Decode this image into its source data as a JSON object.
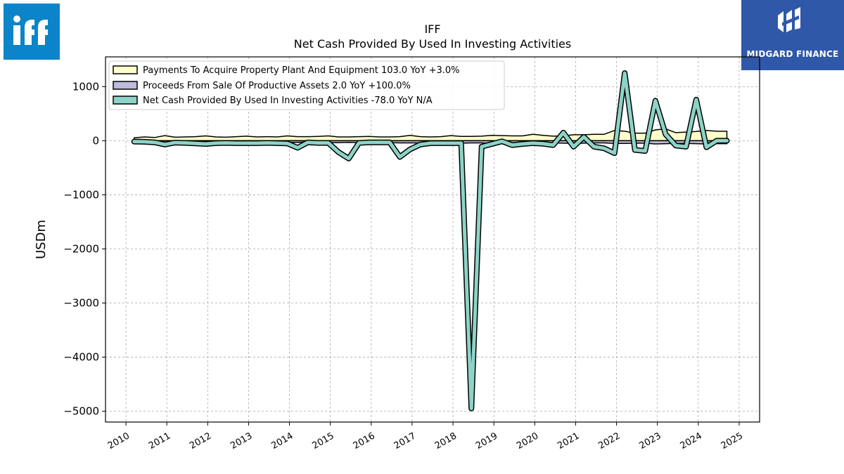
{
  "logos": {
    "left": {
      "text": "iff",
      "color": "#0b84c9"
    },
    "right": {
      "text": "MIDGARD FINANCE",
      "color": "#2f58a8"
    }
  },
  "chart_data": {
    "type": "line",
    "title": "IFF",
    "subtitle": "Net Cash Provided By Used In Investing Activities",
    "ylabel": "USDm",
    "xlabel": "",
    "ylim": [
      -5200,
      1550
    ],
    "xlim": [
      2009.5,
      2025.5
    ],
    "yticks": [
      1000,
      0,
      -1000,
      -2000,
      -3000,
      -4000,
      -5000
    ],
    "ytick_labels": [
      "1000",
      "0",
      "−1000",
      "−2000",
      "−3000",
      "−4000",
      "−5000"
    ],
    "xticks": [
      2010,
      2011,
      2012,
      2013,
      2014,
      2015,
      2016,
      2017,
      2018,
      2019,
      2020,
      2021,
      2022,
      2023,
      2024,
      2025
    ],
    "xtick_labels": [
      "2010",
      "2011",
      "2012",
      "2013",
      "2014",
      "2015",
      "2016",
      "2017",
      "2018",
      "2019",
      "2020",
      "2021",
      "2022",
      "2023",
      "2024",
      "2025"
    ],
    "grid": true,
    "legend_position": "top-left",
    "x": [
      2010.2,
      2010.45,
      2010.7,
      2010.95,
      2011.2,
      2011.45,
      2011.7,
      2011.95,
      2012.2,
      2012.45,
      2012.7,
      2012.95,
      2013.2,
      2013.45,
      2013.7,
      2013.95,
      2014.2,
      2014.45,
      2014.7,
      2014.95,
      2015.2,
      2015.45,
      2015.7,
      2015.95,
      2016.2,
      2016.45,
      2016.7,
      2016.95,
      2017.2,
      2017.45,
      2017.7,
      2017.95,
      2018.2,
      2018.45,
      2018.7,
      2018.95,
      2019.2,
      2019.45,
      2019.7,
      2019.95,
      2020.2,
      2020.45,
      2020.7,
      2020.95,
      2021.2,
      2021.45,
      2021.7,
      2021.95,
      2022.2,
      2022.45,
      2022.7,
      2022.95,
      2023.2,
      2023.45,
      2023.7,
      2023.95,
      2024.2,
      2024.45,
      2024.7
    ],
    "series": [
      {
        "name": "Payments To Acquire Property Plant And Equipment  103.0 YoY +3.0%",
        "kind": "fill",
        "color": "#ffffcc",
        "values": [
          55,
          70,
          60,
          95,
          65,
          70,
          75,
          90,
          70,
          65,
          75,
          85,
          70,
          75,
          70,
          90,
          75,
          75,
          80,
          90,
          70,
          70,
          75,
          80,
          70,
          70,
          75,
          100,
          75,
          70,
          75,
          95,
          80,
          80,
          85,
          100,
          95,
          90,
          90,
          120,
          100,
          85,
          90,
          110,
          110,
          120,
          120,
          190,
          175,
          140,
          140,
          200,
          220,
          150,
          160,
          170,
          190,
          175,
          175
        ]
      },
      {
        "name": "Proceeds From Sale Of Productive Assets  2.0 YoY +100.0%",
        "kind": "fill",
        "color": "#bebada",
        "values": [
          -20,
          -15,
          -20,
          -25,
          -20,
          -15,
          -20,
          -25,
          -20,
          -20,
          -25,
          -25,
          -25,
          -20,
          -25,
          -30,
          -30,
          -25,
          -30,
          -35,
          -35,
          -30,
          -35,
          -40,
          -40,
          -35,
          -40,
          -40,
          -40,
          -35,
          -40,
          -45,
          -45,
          -40,
          -40,
          -50,
          -50,
          -50,
          -45,
          -50,
          -45,
          -40,
          -45,
          -50,
          -45,
          -40,
          -40,
          -50,
          -50,
          -45,
          -45,
          -60,
          -55,
          -50,
          -50,
          -55,
          -60,
          -55,
          -55
        ]
      },
      {
        "name": "Net Cash Provided By Used In Investing Activities  -78.0 YoY N/A",
        "kind": "line",
        "color": "#8dd3c7",
        "values": [
          -15,
          -20,
          -30,
          -70,
          -35,
          -40,
          -50,
          -60,
          -45,
          -40,
          -45,
          -45,
          -45,
          -40,
          -45,
          -50,
          -130,
          -30,
          -40,
          -40,
          -210,
          -330,
          -40,
          -30,
          -30,
          -30,
          -300,
          -160,
          -70,
          -45,
          -45,
          -45,
          -45,
          -4950,
          -110,
          -60,
          -10,
          -80,
          -60,
          -45,
          -55,
          -80,
          150,
          -110,
          70,
          -110,
          -140,
          -230,
          1250,
          -170,
          -190,
          740,
          120,
          -90,
          -110,
          760,
          -120,
          0,
          0
        ]
      }
    ]
  }
}
